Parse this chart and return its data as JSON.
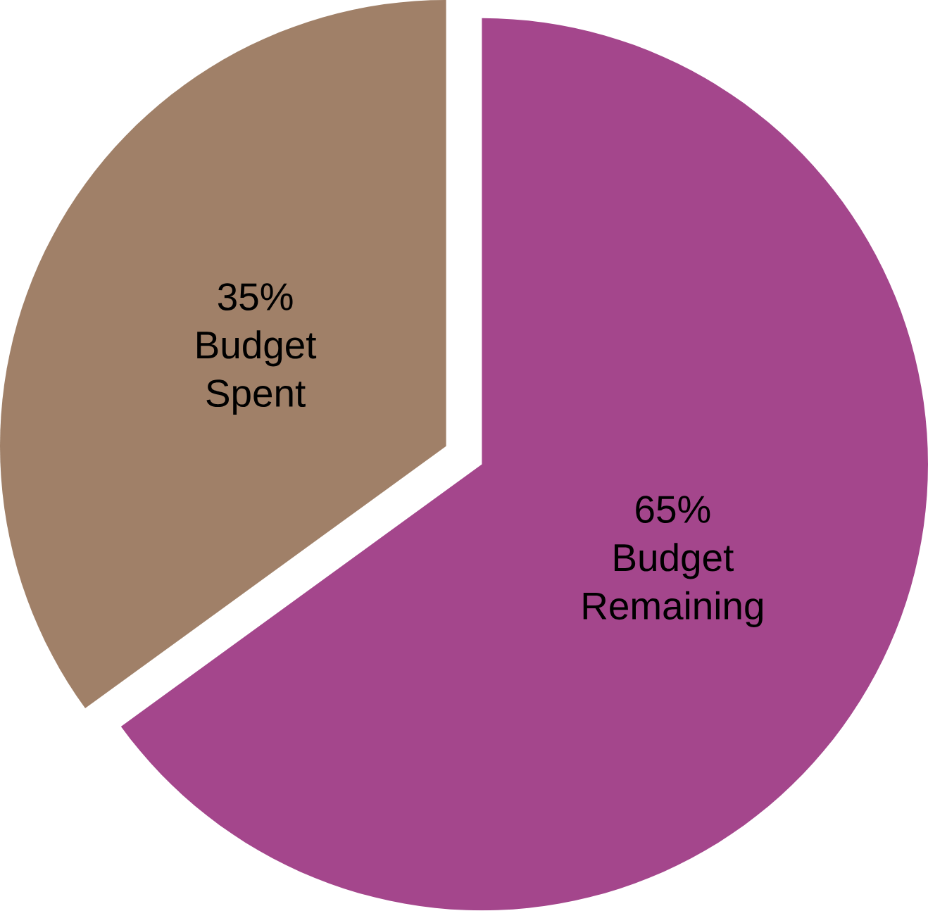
{
  "chart_data": {
    "type": "pie",
    "categories": [
      "Budget Remaining",
      "Budget Spent"
    ],
    "values": [
      65,
      35
    ],
    "value_labels": [
      "65%",
      "35%"
    ],
    "colors": [
      "#a4468c",
      "#a08068"
    ]
  }
}
